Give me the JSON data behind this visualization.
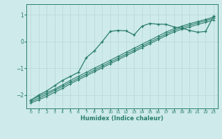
{
  "xlabel": "Humidex (Indice chaleur)",
  "background_color": "#ceeaea",
  "line_color": "#2a7d6e",
  "grid_color": "#b8d8d8",
  "xlim": [
    -0.5,
    23.5
  ],
  "ylim": [
    -2.5,
    1.4
  ],
  "yticks": [
    -2,
    -1,
    0,
    1
  ],
  "xticks": [
    0,
    1,
    2,
    3,
    4,
    5,
    6,
    7,
    8,
    9,
    10,
    11,
    12,
    13,
    14,
    15,
    16,
    17,
    18,
    19,
    20,
    21,
    22,
    23
  ],
  "line1_x": [
    0,
    1,
    2,
    3,
    4,
    5,
    6,
    7,
    8,
    9,
    10,
    11,
    12,
    13,
    14,
    15,
    16,
    17,
    18,
    19,
    20,
    21,
    22,
    23
  ],
  "line1_y": [
    -2.2,
    -2.0,
    -1.85,
    -1.65,
    -1.45,
    -1.3,
    -1.15,
    -0.6,
    -0.35,
    0.0,
    0.38,
    0.42,
    0.4,
    0.25,
    0.58,
    0.68,
    0.65,
    0.65,
    0.55,
    0.5,
    0.42,
    0.35,
    0.38,
    0.95
  ],
  "line2_x": [
    0,
    1,
    2,
    3,
    4,
    5,
    6,
    7,
    8,
    9,
    10,
    11,
    12,
    13,
    14,
    15,
    16,
    17,
    18,
    19,
    20,
    21,
    22,
    23
  ],
  "line2_y": [
    -2.2,
    -2.05,
    -1.92,
    -1.78,
    -1.62,
    -1.45,
    -1.3,
    -1.15,
    -1.0,
    -0.85,
    -0.7,
    -0.55,
    -0.4,
    -0.25,
    -0.1,
    0.05,
    0.2,
    0.35,
    0.48,
    0.58,
    0.67,
    0.75,
    0.83,
    0.92
  ],
  "line3_x": [
    0,
    1,
    2,
    3,
    4,
    5,
    6,
    7,
    8,
    9,
    10,
    11,
    12,
    13,
    14,
    15,
    16,
    17,
    18,
    19,
    20,
    21,
    22,
    23
  ],
  "line3_y": [
    -2.25,
    -2.12,
    -1.98,
    -1.83,
    -1.68,
    -1.52,
    -1.37,
    -1.22,
    -1.07,
    -0.92,
    -0.77,
    -0.62,
    -0.47,
    -0.32,
    -0.17,
    -0.02,
    0.13,
    0.28,
    0.42,
    0.52,
    0.61,
    0.7,
    0.78,
    0.87
  ],
  "line4_x": [
    0,
    1,
    2,
    3,
    4,
    5,
    6,
    7,
    8,
    9,
    10,
    11,
    12,
    13,
    14,
    15,
    16,
    17,
    18,
    19,
    20,
    21,
    22,
    23
  ],
  "line4_y": [
    -2.3,
    -2.18,
    -2.05,
    -1.9,
    -1.75,
    -1.58,
    -1.43,
    -1.28,
    -1.13,
    -0.98,
    -0.83,
    -0.68,
    -0.53,
    -0.38,
    -0.23,
    -0.08,
    0.07,
    0.22,
    0.36,
    0.46,
    0.55,
    0.64,
    0.72,
    0.81
  ]
}
